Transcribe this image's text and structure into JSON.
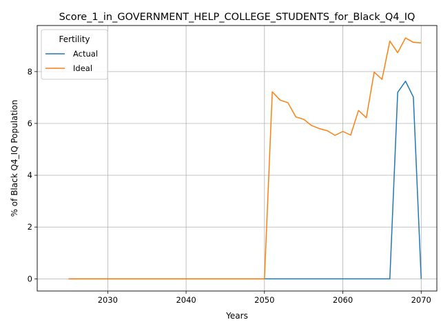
{
  "chart_data": {
    "type": "line",
    "title": "Score_1_in_GOVERNMENT_HELP_COLLEGE_STUDENTS_for_Black_Q4_IQ",
    "xlabel": "Years",
    "ylabel": "% of Black Q4_IQ Population",
    "xlim": [
      2021,
      2072
    ],
    "ylim": [
      -0.47,
      9.78
    ],
    "x_ticks": [
      2030,
      2040,
      2050,
      2060,
      2070
    ],
    "y_ticks": [
      0,
      2,
      4,
      6,
      8
    ],
    "grid": true,
    "legend": {
      "title": "Fertility",
      "placement": "top-left"
    },
    "x": [
      2025,
      2026,
      2027,
      2028,
      2029,
      2030,
      2031,
      2032,
      2033,
      2034,
      2035,
      2036,
      2037,
      2038,
      2039,
      2040,
      2041,
      2042,
      2043,
      2044,
      2045,
      2046,
      2047,
      2048,
      2049,
      2050,
      2051,
      2052,
      2053,
      2054,
      2055,
      2056,
      2057,
      2058,
      2059,
      2060,
      2061,
      2062,
      2063,
      2064,
      2065,
      2066,
      2067,
      2068,
      2069,
      2070
    ],
    "series": [
      {
        "name": "Actual",
        "color": "#1f77b4",
        "values": [
          0,
          0,
          0,
          0,
          0,
          0,
          0,
          0,
          0,
          0,
          0,
          0,
          0,
          0,
          0,
          0,
          0,
          0,
          0,
          0,
          0,
          0,
          0,
          0,
          0,
          0,
          0,
          0,
          0,
          0,
          0,
          0,
          0,
          0,
          0,
          0,
          0,
          0,
          0,
          0,
          0,
          0,
          7.2,
          7.63,
          7.02,
          0
        ]
      },
      {
        "name": "Ideal",
        "color": "#ff7f0e",
        "values": [
          0,
          0,
          0,
          0,
          0,
          0,
          0,
          0,
          0,
          0,
          0,
          0,
          0,
          0,
          0,
          0,
          0,
          0,
          0,
          0,
          0,
          0,
          0,
          0,
          0,
          0,
          7.22,
          6.9,
          6.8,
          6.25,
          6.16,
          5.92,
          5.8,
          5.72,
          5.54,
          5.69,
          5.55,
          6.5,
          6.22,
          7.98,
          7.7,
          9.18,
          8.73,
          9.3,
          9.13,
          9.11
        ]
      }
    ]
  }
}
